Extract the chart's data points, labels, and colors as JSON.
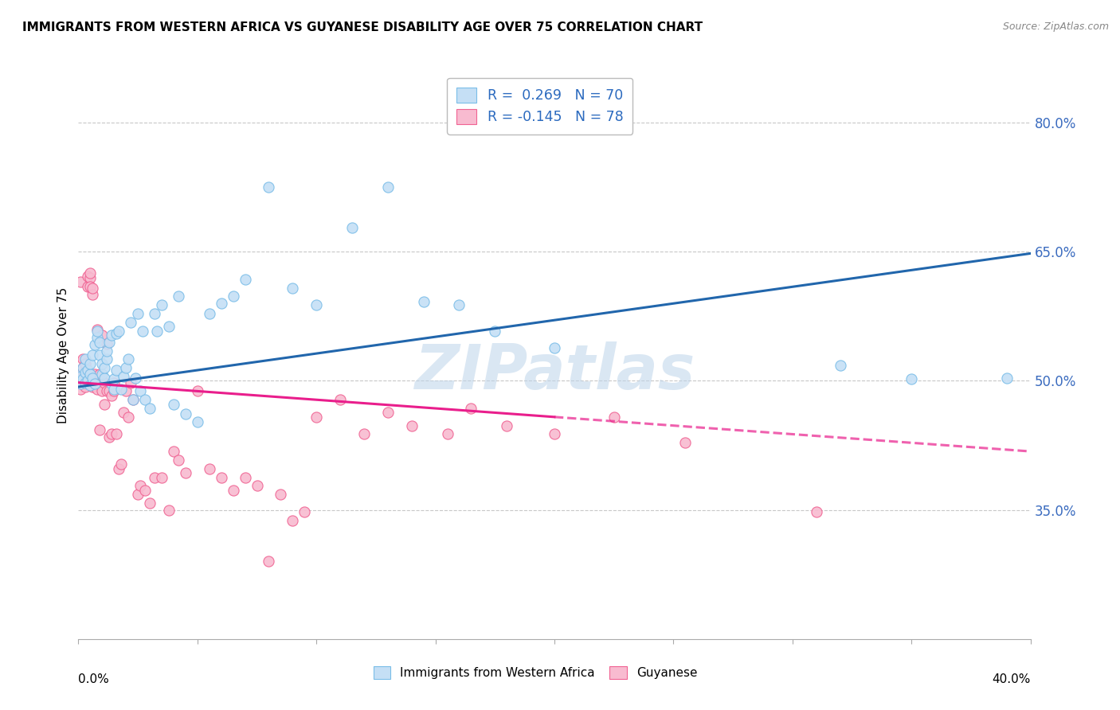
{
  "title": "IMMIGRANTS FROM WESTERN AFRICA VS GUYANESE DISABILITY AGE OVER 75 CORRELATION CHART",
  "source": "Source: ZipAtlas.com",
  "xlabel_bottom_left": "0.0%",
  "xlabel_bottom_right": "40.0%",
  "ylabel": "Disability Age Over 75",
  "right_yticks": [
    0.35,
    0.5,
    0.65,
    0.8
  ],
  "right_ytick_labels": [
    "35.0%",
    "50.0%",
    "65.0%",
    "80.0%"
  ],
  "xmin": 0.0,
  "xmax": 0.4,
  "ymin": 0.2,
  "ymax": 0.86,
  "blue_R": 0.269,
  "blue_N": 70,
  "pink_R": -0.145,
  "pink_N": 78,
  "blue_color": "#7abde8",
  "blue_fill": "#c5dff5",
  "pink_color": "#f06292",
  "pink_fill": "#f8bbd0",
  "blue_line_color": "#2166ac",
  "pink_line_color": "#e91e8c",
  "watermark": "ZIPatlas",
  "legend_label_blue": "Immigrants from Western Africa",
  "legend_label_pink": "Guyanese",
  "blue_trend_x0": 0.0,
  "blue_trend_y0": 0.493,
  "blue_trend_x1": 0.4,
  "blue_trend_y1": 0.648,
  "pink_trend_x0": 0.0,
  "pink_trend_y0": 0.498,
  "pink_trend_x1": 0.4,
  "pink_trend_y1": 0.418,
  "pink_solid_xend": 0.2,
  "blue_scatter_x": [
    0.001,
    0.001,
    0.002,
    0.002,
    0.003,
    0.003,
    0.003,
    0.004,
    0.004,
    0.005,
    0.005,
    0.005,
    0.006,
    0.006,
    0.007,
    0.007,
    0.008,
    0.008,
    0.009,
    0.009,
    0.01,
    0.01,
    0.011,
    0.011,
    0.012,
    0.012,
    0.013,
    0.014,
    0.014,
    0.015,
    0.015,
    0.016,
    0.016,
    0.017,
    0.018,
    0.019,
    0.02,
    0.021,
    0.022,
    0.023,
    0.024,
    0.025,
    0.026,
    0.027,
    0.028,
    0.03,
    0.032,
    0.033,
    0.035,
    0.038,
    0.04,
    0.042,
    0.045,
    0.05,
    0.055,
    0.06,
    0.065,
    0.07,
    0.08,
    0.09,
    0.1,
    0.115,
    0.13,
    0.145,
    0.16,
    0.175,
    0.2,
    0.32,
    0.35,
    0.39
  ],
  "blue_scatter_y": [
    0.497,
    0.505,
    0.502,
    0.515,
    0.498,
    0.51,
    0.525,
    0.5,
    0.512,
    0.495,
    0.508,
    0.52,
    0.503,
    0.53,
    0.497,
    0.542,
    0.55,
    0.558,
    0.53,
    0.545,
    0.508,
    0.52,
    0.503,
    0.515,
    0.525,
    0.535,
    0.545,
    0.553,
    0.497,
    0.49,
    0.502,
    0.512,
    0.555,
    0.558,
    0.49,
    0.505,
    0.515,
    0.525,
    0.568,
    0.478,
    0.503,
    0.578,
    0.488,
    0.558,
    0.478,
    0.468,
    0.578,
    0.558,
    0.588,
    0.563,
    0.473,
    0.598,
    0.462,
    0.452,
    0.578,
    0.59,
    0.598,
    0.618,
    0.725,
    0.608,
    0.588,
    0.678,
    0.725,
    0.592,
    0.588,
    0.558,
    0.538,
    0.518,
    0.502,
    0.503
  ],
  "pink_scatter_x": [
    0.001,
    0.001,
    0.001,
    0.002,
    0.002,
    0.002,
    0.003,
    0.003,
    0.003,
    0.004,
    0.004,
    0.004,
    0.004,
    0.005,
    0.005,
    0.005,
    0.006,
    0.006,
    0.006,
    0.007,
    0.007,
    0.008,
    0.008,
    0.008,
    0.009,
    0.009,
    0.01,
    0.01,
    0.011,
    0.011,
    0.012,
    0.012,
    0.013,
    0.013,
    0.014,
    0.014,
    0.015,
    0.015,
    0.016,
    0.017,
    0.018,
    0.019,
    0.02,
    0.021,
    0.022,
    0.023,
    0.025,
    0.026,
    0.028,
    0.03,
    0.032,
    0.035,
    0.038,
    0.04,
    0.042,
    0.045,
    0.05,
    0.055,
    0.06,
    0.065,
    0.07,
    0.075,
    0.08,
    0.085,
    0.09,
    0.095,
    0.1,
    0.11,
    0.12,
    0.13,
    0.14,
    0.155,
    0.165,
    0.18,
    0.2,
    0.225,
    0.255,
    0.31
  ],
  "pink_scatter_y": [
    0.49,
    0.503,
    0.615,
    0.498,
    0.515,
    0.525,
    0.493,
    0.503,
    0.52,
    0.503,
    0.498,
    0.61,
    0.622,
    0.62,
    0.61,
    0.625,
    0.493,
    0.6,
    0.608,
    0.498,
    0.508,
    0.49,
    0.498,
    0.56,
    0.443,
    0.508,
    0.488,
    0.553,
    0.498,
    0.473,
    0.488,
    0.543,
    0.488,
    0.435,
    0.438,
    0.483,
    0.488,
    0.498,
    0.438,
    0.398,
    0.403,
    0.463,
    0.488,
    0.458,
    0.498,
    0.478,
    0.368,
    0.378,
    0.373,
    0.358,
    0.388,
    0.388,
    0.35,
    0.418,
    0.408,
    0.393,
    0.488,
    0.398,
    0.388,
    0.373,
    0.388,
    0.378,
    0.29,
    0.368,
    0.338,
    0.348,
    0.458,
    0.478,
    0.438,
    0.463,
    0.448,
    0.438,
    0.468,
    0.448,
    0.438,
    0.458,
    0.428,
    0.348
  ]
}
